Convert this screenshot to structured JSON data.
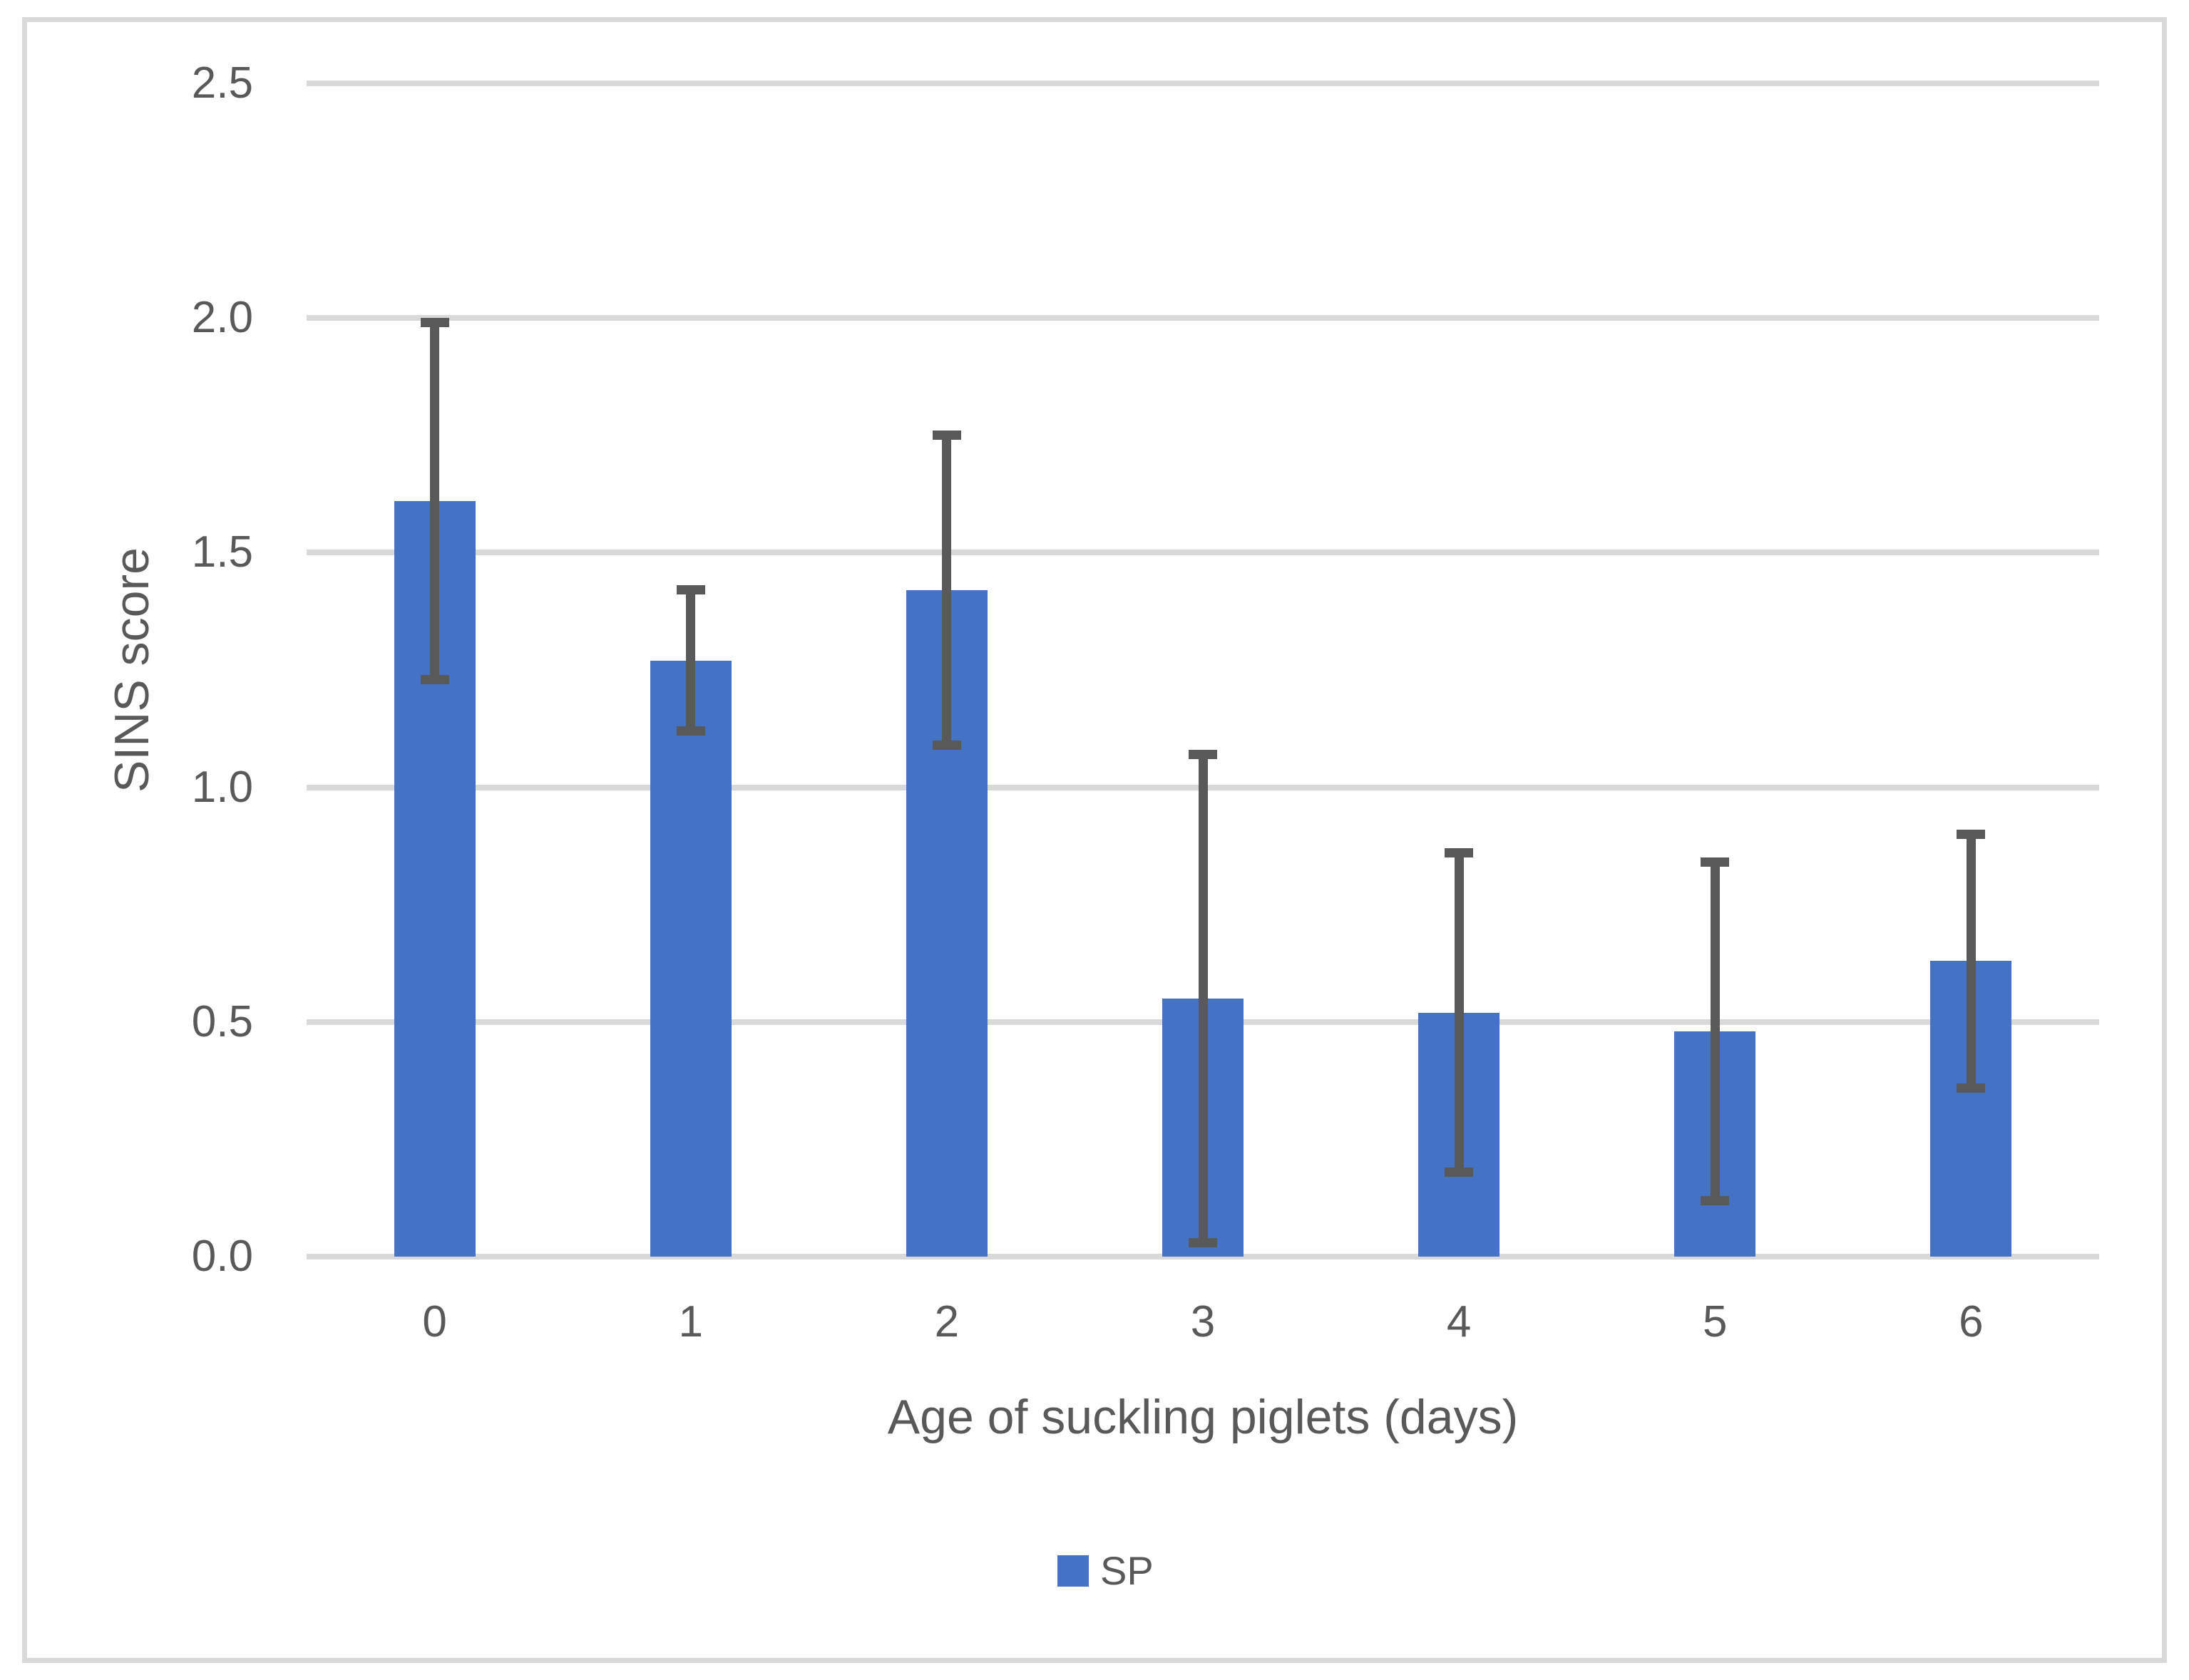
{
  "chart_data": {
    "type": "bar",
    "title": "",
    "categories": [
      "0",
      "1",
      "2",
      "3",
      "4",
      "5",
      "6"
    ],
    "series": [
      {
        "name": "SP",
        "values": [
          1.61,
          1.27,
          1.42,
          0.55,
          0.52,
          0.48,
          0.63
        ],
        "error_high": [
          2.0,
          1.43,
          1.76,
          1.08,
          0.87,
          0.85,
          0.91
        ],
        "error_low": [
          1.22,
          1.11,
          1.08,
          0.02,
          0.17,
          0.11,
          0.35
        ]
      }
    ],
    "xlabel": "Age of suckling piglets (days)",
    "ylabel": "SINS score",
    "ylim": [
      0,
      2.5
    ],
    "ytick_step": 0.5,
    "ytick_labels": [
      "0.0",
      "0.5",
      "1.0",
      "1.5",
      "2.0",
      "2.5"
    ],
    "grid": true,
    "legend_position": "bottom-center",
    "legend_entries": [
      "SP"
    ],
    "colors": {
      "bar": "#4472C4",
      "error_bar": "#595959",
      "gridline": "#D9D9D9",
      "text": "#595959",
      "frame": "#D9D9D9",
      "background": "#FFFFFF"
    }
  }
}
